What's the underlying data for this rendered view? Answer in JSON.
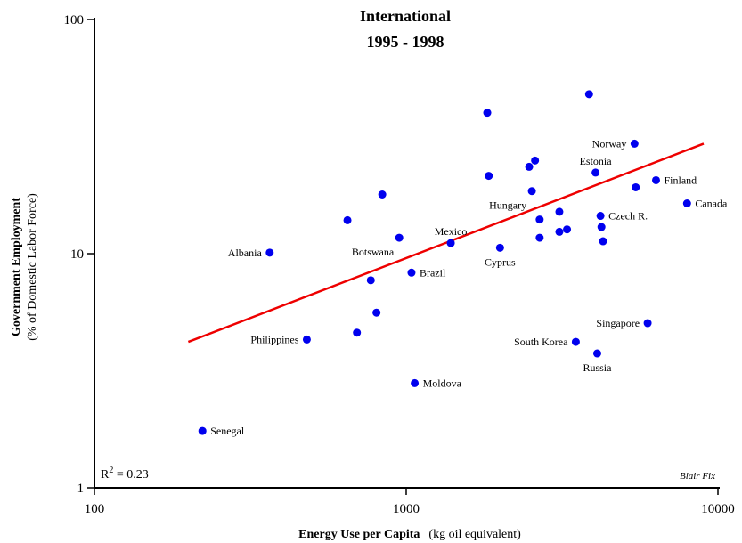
{
  "chart_data": {
    "type": "scatter",
    "title": [
      "International",
      "1995 - 1998"
    ],
    "x_scale": "log",
    "y_scale": "log",
    "xlim": [
      100,
      10000
    ],
    "ylim": [
      1,
      100
    ],
    "x_ticks": [
      100,
      1000,
      10000
    ],
    "x_tick_labels": [
      "100",
      "1000",
      "10000"
    ],
    "y_ticks": [
      1,
      10,
      100
    ],
    "y_tick_labels": [
      "1",
      "10",
      "100"
    ],
    "xlabel_bold": "Energy Use per Capita",
    "xlabel_normal": "(kg oil equivalent)",
    "ylabel_bold": "Government Employment",
    "ylabel_normal": "(% of Domestic Labor Force)",
    "r2_prefix": "R",
    "r2_exp": "2",
    "r2_value": " = 0.23",
    "credit": "Blair Fix",
    "grid": false,
    "point_color": "#0000ee",
    "trend_color": "#ee0000",
    "trendline": {
      "x": [
        200,
        9000
      ],
      "y": [
        4.2,
        29.5
      ]
    },
    "points": [
      {
        "x": 222,
        "y": 1.75,
        "label": "Senegal",
        "label_pos": "right"
      },
      {
        "x": 365,
        "y": 10.1,
        "label": "Albania",
        "label_pos": "left"
      },
      {
        "x": 480,
        "y": 4.3,
        "label": "Philippines",
        "label_pos": "left"
      },
      {
        "x": 648,
        "y": 13.9,
        "label": ""
      },
      {
        "x": 695,
        "y": 4.6,
        "label": ""
      },
      {
        "x": 770,
        "y": 7.7,
        "label": ""
      },
      {
        "x": 803,
        "y": 5.6,
        "label": ""
      },
      {
        "x": 838,
        "y": 17.9,
        "label": ""
      },
      {
        "x": 950,
        "y": 11.7,
        "label": "Botswana",
        "label_pos": "below-left"
      },
      {
        "x": 1040,
        "y": 8.3,
        "label": "Brazil",
        "label_pos": "right"
      },
      {
        "x": 1065,
        "y": 2.8,
        "label": "Moldova",
        "label_pos": "right"
      },
      {
        "x": 1390,
        "y": 11.1,
        "label": "Mexico",
        "label_pos": "above"
      },
      {
        "x": 1820,
        "y": 40.0,
        "label": ""
      },
      {
        "x": 1840,
        "y": 21.5,
        "label": ""
      },
      {
        "x": 2000,
        "y": 10.6,
        "label": "Cyprus",
        "label_pos": "below"
      },
      {
        "x": 2480,
        "y": 23.5,
        "label": ""
      },
      {
        "x": 2530,
        "y": 18.5,
        "label": "Hungary",
        "label_pos": "below-left"
      },
      {
        "x": 2590,
        "y": 25.0,
        "label": ""
      },
      {
        "x": 2680,
        "y": 14.0,
        "label": ""
      },
      {
        "x": 2680,
        "y": 11.7,
        "label": ""
      },
      {
        "x": 3100,
        "y": 15.1,
        "label": ""
      },
      {
        "x": 3100,
        "y": 12.4,
        "label": ""
      },
      {
        "x": 3280,
        "y": 12.7,
        "label": ""
      },
      {
        "x": 3500,
        "y": 4.2,
        "label": "South Korea",
        "label_pos": "left"
      },
      {
        "x": 3860,
        "y": 48.0,
        "label": ""
      },
      {
        "x": 4050,
        "y": 22.2,
        "label": "Estonia",
        "label_pos": "above"
      },
      {
        "x": 4100,
        "y": 3.75,
        "label": "Russia",
        "label_pos": "below"
      },
      {
        "x": 4200,
        "y": 14.5,
        "label": "Czech R.",
        "label_pos": "right"
      },
      {
        "x": 4230,
        "y": 13.0,
        "label": ""
      },
      {
        "x": 4280,
        "y": 11.3,
        "label": ""
      },
      {
        "x": 5400,
        "y": 29.5,
        "label": "Norway",
        "label_pos": "left"
      },
      {
        "x": 5450,
        "y": 19.2,
        "label": ""
      },
      {
        "x": 5950,
        "y": 5.05,
        "label": "Singapore",
        "label_pos": "left"
      },
      {
        "x": 6330,
        "y": 20.6,
        "label": "Finland",
        "label_pos": "right"
      },
      {
        "x": 7960,
        "y": 16.4,
        "label": "Canada",
        "label_pos": "right"
      }
    ]
  }
}
